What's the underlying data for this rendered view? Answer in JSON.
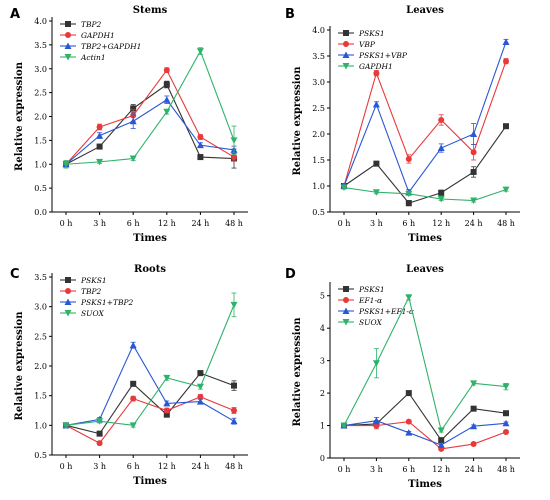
{
  "colors": {
    "black": "#333333",
    "red": "#e8393b",
    "blue": "#2a57d6",
    "green": "#2fb36b"
  },
  "chart_data": [
    {
      "letter": "A",
      "type": "line",
      "title": "Stems",
      "xlabel": "Times",
      "ylabel": "Relative expression",
      "categories": [
        "0 h",
        "3 h",
        "6 h",
        "12 h",
        "24 h",
        "48 h"
      ],
      "ylim": [
        0,
        4.0
      ],
      "yticks": [
        0.0,
        0.5,
        1.0,
        1.5,
        2.0,
        2.5,
        3.0,
        3.5,
        4.0
      ],
      "ytick_labels": [
        "0.0",
        "0.5",
        "1.0",
        "1.5",
        "2.0",
        "2.5",
        "3.0",
        "3.5",
        "4.0"
      ],
      "legend": "top-left",
      "series": [
        {
          "name": "TBP2",
          "marker": "square",
          "color": "black",
          "values": [
            1.0,
            1.37,
            2.17,
            2.67,
            1.15,
            1.12
          ],
          "errors": [
            0.05,
            0.05,
            0.08,
            0.07,
            0.05,
            0.2
          ]
        },
        {
          "name": "GAPDH1",
          "marker": "circle",
          "color": "red",
          "values": [
            1.0,
            1.78,
            2.02,
            2.97,
            1.57,
            1.15
          ],
          "errors": [
            0.05,
            0.06,
            0.12,
            0.05,
            0.05,
            0.08
          ]
        },
        {
          "name": "TBP2+GAPDH1",
          "marker": "triangle-up",
          "color": "blue",
          "values": [
            1.0,
            1.6,
            1.9,
            2.35,
            1.4,
            1.3
          ],
          "errors": [
            0.05,
            0.06,
            0.15,
            0.08,
            0.05,
            0.08
          ]
        },
        {
          "name": "Actin1",
          "marker": "triangle-down",
          "color": "green",
          "values": [
            1.0,
            1.05,
            1.12,
            2.1,
            3.37,
            1.5
          ],
          "errors": [
            0.08,
            0.03,
            0.04,
            0.05,
            0.07,
            0.3
          ]
        }
      ]
    },
    {
      "letter": "B",
      "type": "line",
      "title": "Leaves",
      "xlabel": "Times",
      "ylabel": "Relative expression",
      "categories": [
        "0 h",
        "3 h",
        "6 h",
        "12 h",
        "24 h",
        "48 h"
      ],
      "ylim": [
        0.5,
        4.0
      ],
      "yticks": [
        0.5,
        1.0,
        1.5,
        2.0,
        2.5,
        3.0,
        3.5,
        4.0
      ],
      "ytick_labels": [
        "0.5",
        "1.0",
        "1.5",
        "2.0",
        "2.5",
        "3.0",
        "3.5",
        "4.0"
      ],
      "legend": "top-left",
      "series": [
        {
          "name": "PSKS1",
          "marker": "square",
          "color": "black",
          "values": [
            1.0,
            1.43,
            0.67,
            0.87,
            1.27,
            2.15
          ],
          "errors": [
            0.03,
            0.03,
            0.05,
            0.05,
            0.1,
            0.03
          ]
        },
        {
          "name": "VBP",
          "marker": "circle",
          "color": "red",
          "values": [
            1.0,
            3.17,
            1.52,
            2.27,
            1.65,
            3.4
          ],
          "errors": [
            0.03,
            0.05,
            0.08,
            0.1,
            0.15,
            0.05
          ]
        },
        {
          "name": "PSKS1+VBP",
          "marker": "triangle-up",
          "color": "blue",
          "values": [
            1.0,
            2.57,
            0.88,
            1.73,
            2.0,
            3.77
          ],
          "errors": [
            0.03,
            0.05,
            0.05,
            0.08,
            0.2,
            0.05
          ]
        },
        {
          "name": "GAPDH1",
          "marker": "triangle-down",
          "color": "green",
          "values": [
            0.97,
            0.88,
            0.85,
            0.75,
            0.72,
            0.93
          ],
          "errors": [
            0.03,
            0.03,
            0.03,
            0.03,
            0.03,
            0.03
          ]
        }
      ]
    },
    {
      "letter": "C",
      "type": "line",
      "title": "Roots",
      "xlabel": "Times",
      "ylabel": "Relative expression",
      "categories": [
        "0 h",
        "3 h",
        "6 h",
        "12 h",
        "24 h",
        "48 h"
      ],
      "ylim": [
        0.5,
        3.5
      ],
      "yticks": [
        0.5,
        1.0,
        1.5,
        2.0,
        2.5,
        3.0,
        3.5
      ],
      "ytick_labels": [
        "0.5",
        "1.0",
        "1.5",
        "2.0",
        "2.5",
        "3.0",
        "3.5"
      ],
      "legend": "top-left",
      "series": [
        {
          "name": "PSKS1",
          "marker": "square",
          "color": "black",
          "values": [
            1.0,
            0.86,
            1.7,
            1.18,
            1.88,
            1.67
          ],
          "errors": [
            0.03,
            0.03,
            0.04,
            0.04,
            0.04,
            0.08
          ]
        },
        {
          "name": "TBP2",
          "marker": "circle",
          "color": "red",
          "values": [
            1.0,
            0.7,
            1.45,
            1.25,
            1.48,
            1.25
          ],
          "errors": [
            0.03,
            0.03,
            0.04,
            0.04,
            0.04,
            0.05
          ]
        },
        {
          "name": "PSKS1+TBP2",
          "marker": "triangle-up",
          "color": "blue",
          "values": [
            1.0,
            1.1,
            2.35,
            1.37,
            1.4,
            1.07
          ],
          "errors": [
            0.03,
            0.03,
            0.05,
            0.04,
            0.04,
            0.05
          ]
        },
        {
          "name": "SUOX",
          "marker": "triangle-down",
          "color": "green",
          "values": [
            1.0,
            1.07,
            1.0,
            1.8,
            1.65,
            3.03
          ],
          "errors": [
            0.03,
            0.03,
            0.03,
            0.04,
            0.04,
            0.2
          ]
        }
      ]
    },
    {
      "letter": "D",
      "type": "line",
      "title": "Leaves",
      "xlabel": "Times",
      "ylabel": "Relative expression",
      "categories": [
        "0 h",
        "3 h",
        "6 h",
        "12 h",
        "24 h",
        "48 h"
      ],
      "ylim": [
        0,
        5.3
      ],
      "yticks": [
        0,
        1,
        2,
        3,
        4,
        5
      ],
      "ytick_labels": [
        "0",
        "1",
        "2",
        "3",
        "4",
        "5"
      ],
      "legend": "top-left",
      "series": [
        {
          "name": "PSKS1",
          "marker": "square",
          "color": "black",
          "values": [
            1.0,
            1.05,
            2.0,
            0.55,
            1.52,
            1.38
          ],
          "errors": [
            0.04,
            0.1,
            0.05,
            0.05,
            0.04,
            0.05
          ]
        },
        {
          "name": "EF1-α",
          "marker": "circle",
          "color": "red",
          "values": [
            1.0,
            1.0,
            1.12,
            0.28,
            0.43,
            0.8
          ],
          "errors": [
            0.04,
            0.1,
            0.04,
            0.04,
            0.04,
            0.04
          ]
        },
        {
          "name": "PSKS1+EF1-α",
          "marker": "triangle-up",
          "color": "blue",
          "values": [
            1.0,
            1.15,
            0.78,
            0.4,
            0.98,
            1.07
          ],
          "errors": [
            0.04,
            0.1,
            0.04,
            0.04,
            0.04,
            0.04
          ]
        },
        {
          "name": "SUOX",
          "marker": "triangle-down",
          "color": "green",
          "values": [
            1.0,
            2.92,
            4.95,
            0.85,
            2.3,
            2.2
          ],
          "errors": [
            0.04,
            0.45,
            0.08,
            0.05,
            0.05,
            0.1
          ]
        }
      ]
    }
  ]
}
